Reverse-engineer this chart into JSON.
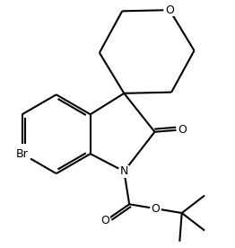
{
  "bg_color": "#ffffff",
  "line_color": "#000000",
  "line_width": 1.5,
  "figsize": [
    2.62,
    2.76
  ],
  "dpi": 100,
  "xlim": [
    -2.2,
    2.6
  ],
  "ylim": [
    -3.4,
    2.2
  ]
}
